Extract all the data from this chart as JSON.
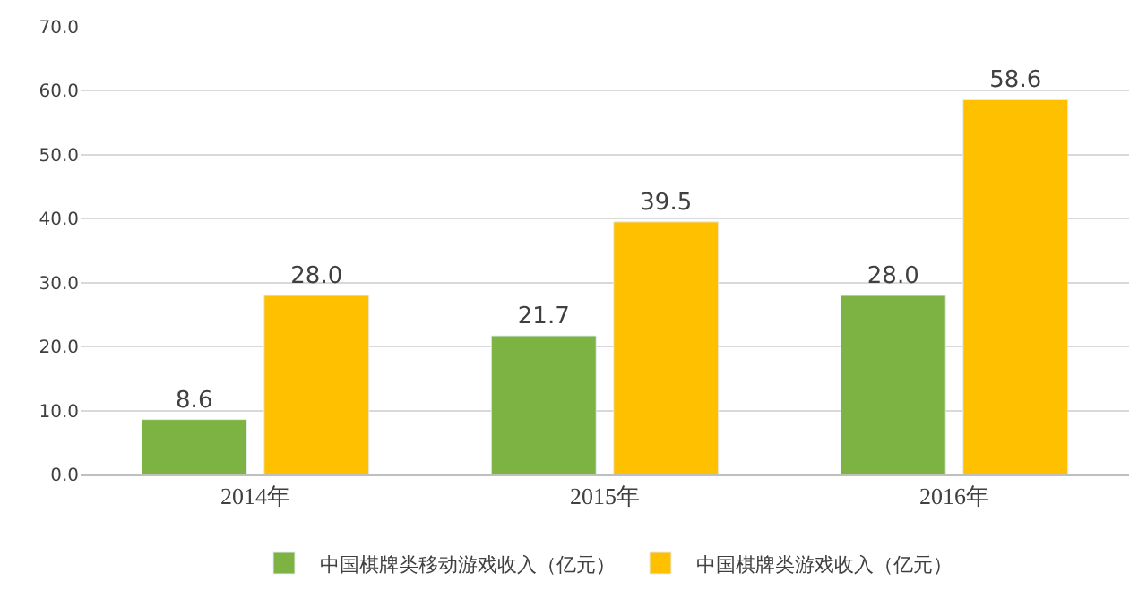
{
  "chart_data": {
    "type": "bar",
    "categories": [
      "2014年",
      "2015年",
      "2016年"
    ],
    "series": [
      {
        "name": "中国棋牌类移动游戏收入（亿元）",
        "color": "#7cb342",
        "values": [
          8.6,
          21.7,
          28.0
        ],
        "value_labels": [
          "8.6",
          "21.7",
          "28.0"
        ]
      },
      {
        "name": "中国棋牌类游戏收入（亿元）",
        "color": "#ffc000",
        "values": [
          28.0,
          39.5,
          58.6
        ],
        "value_labels": [
          "28.0",
          "39.5",
          "58.6"
        ]
      }
    ],
    "ylim": [
      0,
      70
    ],
    "yticks": [
      {
        "value": 0,
        "label": "0.0"
      },
      {
        "value": 10,
        "label": "10.0"
      },
      {
        "value": 20,
        "label": "20.0"
      },
      {
        "value": 30,
        "label": "30.0"
      },
      {
        "value": 40,
        "label": "40.0"
      },
      {
        "value": 50,
        "label": "50.0"
      },
      {
        "value": 60,
        "label": "60.0"
      },
      {
        "value": 70,
        "label": "70.0"
      }
    ],
    "grid": "y",
    "legend": "bottom"
  }
}
